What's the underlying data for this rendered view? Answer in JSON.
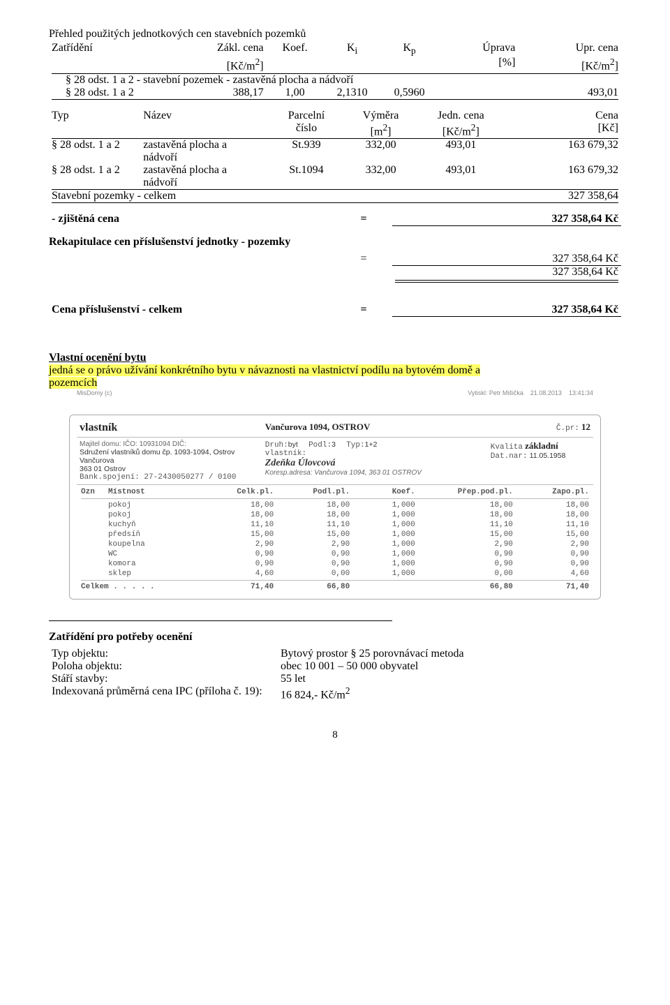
{
  "title": "Přehled použitých jednotkových cen stavebních pozemků",
  "hdr": {
    "zatrideni": "Zatřídění",
    "zaklcena": "Zákl. cena",
    "koef": "Koef.",
    "ki": "K",
    "ki_sub": "i",
    "kp": "K",
    "kp_sub": "p",
    "uprava": "Úprava",
    "uprcena": "Upr. cena",
    "unit_kcm2": "[Kč/m",
    "unit_pct": "[%]",
    "sup2_close": "]"
  },
  "sec_desc": "§ 28 odst. 1 a 2 - stavební pozemek - zastavěná plocha a nádvoří",
  "row_calc": {
    "label": "§ 28 odst. 1 a 2",
    "v1": "388,17",
    "v2": "1,00",
    "v3": "2,1310",
    "v4": "0,5960",
    "v5": "493,01"
  },
  "hdr2": {
    "typ": "Typ",
    "nazev": "Název",
    "parcelni": "Parcelní",
    "cislo": "číslo",
    "vymera": "Výměra",
    "m2": "[m",
    "jedncena": "Jedn. cena",
    "kcm2": "[Kč/m",
    "cena": "Cena",
    "kc": "[Kč]"
  },
  "plot_rows": [
    {
      "typ": "§ 28 odst. 1 a 2",
      "nazev1": "zastavěná plocha a",
      "nazev2": "nádvoří",
      "parc": "St.939",
      "vym": "332,00",
      "jc": "493,01",
      "cena": "163 679,32"
    },
    {
      "typ": "§ 28 odst. 1 a 2",
      "nazev1": "zastavěná plocha a",
      "nazev2": "nádvoří",
      "parc": "St.1094",
      "vym": "332,00",
      "jc": "493,01",
      "cena": "163 679,32"
    }
  ],
  "sp_celkem_label": "Stavební pozemky - celkem",
  "sp_celkem_val": "327 358,64",
  "zjistena_label": "- zjištěná cena",
  "eq": "=",
  "zjistena_val": "327 358,64 Kč",
  "rekap_title": "Rekapitulace cen příslušenství jednotky - pozemky",
  "rekap_v1": "327 358,64 Kč",
  "rekap_v2": "327 358,64 Kč",
  "prisl_label": "Cena příslušenství - celkem",
  "prisl_val": "327 358,64 Kč",
  "vlastni_title": "Vlastní ocenění bytu",
  "vlastni_desc1": "jedná se o právo užívání konkrétního bytu v návaznosti na vlastnictví podílu na bytovém domě a",
  "vlastni_desc2": "pozemcích",
  "form": {
    "meta_left": "MisDomy (c)",
    "meta_mid": "Vytiskl: Petr Mišička",
    "meta_date": "21.08.2013",
    "meta_time": "13:41:34",
    "vlastnik_big": "vlastník",
    "address": "Vančurova 1094, OSTROV",
    "cpr_label": "Č.pr:",
    "cpr": "12",
    "majitel_line": "Majitel domu:   IČO: 10931094  DIČ:",
    "sdruzeni": "Sdružení vlastníků domu čp. 1093-1094, Ostrov",
    "ulice": "Vančurova",
    "pscmesto": "363 01    Ostrov",
    "bank": "Bank.spojení:        27-2430050277 / 0100",
    "druh_l": "Druh:",
    "druh_v": "byt",
    "podl_l": "Podl:",
    "podl_v": "3",
    "typ_l": "Typ:",
    "typ_v": "1+2",
    "kval_l": "Kvalita",
    "kval_v": "základní",
    "vlastnik_l": "vlastník:",
    "datnar_l": "Dat.nar:",
    "datnar_v": "11.05.1958",
    "name": "Zdeňka Úlovcová",
    "koresp": "Koresp.adresa: Vančurova 1094, 363 01 OSTROV",
    "th": {
      "ozn": "Ozn",
      "mist": "Místnost",
      "celk": "Celk.pl.",
      "podl": "Podl.pl.",
      "koef": "Koef.",
      "prep": "Přep.pod.pl.",
      "zapo": "Zapo.pl."
    },
    "rooms": [
      {
        "m": "pokoj",
        "a": "18,00",
        "b": "18,00",
        "c": "1,000",
        "d": "18,00",
        "e": "18,00"
      },
      {
        "m": "pokoj",
        "a": "18,00",
        "b": "18,00",
        "c": "1,000",
        "d": "18,00",
        "e": "18,00"
      },
      {
        "m": "kuchyň",
        "a": "11,10",
        "b": "11,10",
        "c": "1,000",
        "d": "11,10",
        "e": "11,10"
      },
      {
        "m": "předsíň",
        "a": "15,00",
        "b": "15,00",
        "c": "1,000",
        "d": "15,00",
        "e": "15,00"
      },
      {
        "m": "koupelna",
        "a": "2,90",
        "b": "2,90",
        "c": "1,000",
        "d": "2,90",
        "e": "2,90"
      },
      {
        "m": "WC",
        "a": "0,90",
        "b": "0,90",
        "c": "1,000",
        "d": "0,90",
        "e": "0,90"
      },
      {
        "m": "komora",
        "a": "0,90",
        "b": "0,90",
        "c": "1,000",
        "d": "0,90",
        "e": "0,90"
      },
      {
        "m": "sklep",
        "a": "4,60",
        "b": "0,00",
        "c": "1,000",
        "d": "0,00",
        "e": "4,60"
      }
    ],
    "celkem_label": "Celkem . . . . .",
    "tot": {
      "a": "71,40",
      "b": "66,80",
      "d": "66,80",
      "e": "71,40"
    }
  },
  "zatr_title": "Zatřídění pro potřeby ocenění",
  "zatr": {
    "r1l": "Typ objektu:",
    "r1v": "Bytový prostor § 25 porovnávací metoda",
    "r2l": "Poloha objektu:",
    "r2v": "obec 10 001 – 50 000 obyvatel",
    "r3l": "Stáří stavby:",
    "r3v": "55 let",
    "r4l": "Indexovaná průměrná cena IPC (příloha č. 19):",
    "r4v_pre": "16 824,- Kč/m"
  },
  "pagenum": "8"
}
